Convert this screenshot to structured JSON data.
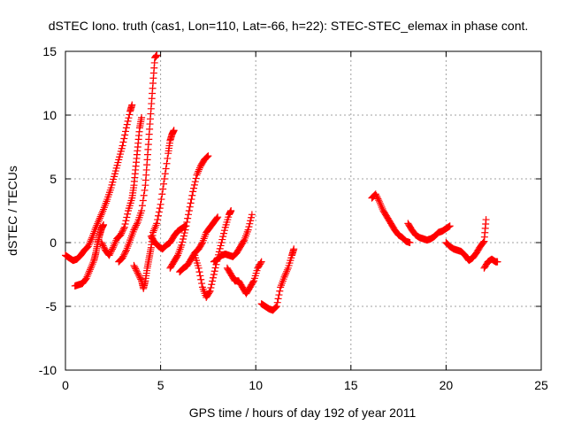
{
  "chart_data": {
    "type": "scatter",
    "title": "dSTEC Iono. truth (cas1, Lon=110, Lat=-66, h=22): STEC-STEC_elemax in phase cont.",
    "xlabel": "GPS time / hours of day 192 of year 2011",
    "ylabel": "dSTEC  / TECUs",
    "xlim": [
      0,
      25
    ],
    "ylim": [
      -10,
      15
    ],
    "xticks": [
      0,
      5,
      10,
      15,
      20,
      25
    ],
    "yticks": [
      -10,
      -5,
      0,
      5,
      10,
      15
    ],
    "grid": true,
    "marker": "+",
    "color": "#ff0000",
    "series": [
      {
        "arcs": [
          [
            [
              0.0,
              -1.0
            ],
            [
              0.2,
              -1.2
            ],
            [
              0.4,
              -1.4
            ],
            [
              0.6,
              -1.3
            ],
            [
              0.8,
              -1.0
            ],
            [
              1.0,
              -0.6
            ],
            [
              1.2,
              -0.3
            ],
            [
              1.4,
              0.4
            ],
            [
              1.6,
              1.2
            ],
            [
              1.8,
              1.9
            ],
            [
              2.0,
              2.6
            ],
            [
              2.2,
              3.4
            ],
            [
              2.4,
              4.3
            ],
            [
              2.6,
              5.4
            ],
            [
              2.8,
              6.5
            ],
            [
              3.0,
              7.6
            ],
            [
              3.2,
              9.0
            ],
            [
              3.4,
              10.3
            ],
            [
              3.5,
              10.8
            ]
          ],
          [
            [
              0.5,
              -3.4
            ],
            [
              0.7,
              -3.3
            ],
            [
              0.9,
              -3.2
            ],
            [
              1.1,
              -2.8
            ],
            [
              1.3,
              -2.1
            ],
            [
              1.5,
              -1.4
            ],
            [
              1.6,
              -0.8
            ],
            [
              1.7,
              0.0
            ],
            [
              1.8,
              0.6
            ],
            [
              1.9,
              1.1
            ],
            [
              2.0,
              1.4
            ]
          ],
          [
            [
              1.9,
              0.0
            ],
            [
              2.1,
              -0.6
            ],
            [
              2.3,
              -1.0
            ],
            [
              2.5,
              -0.4
            ],
            [
              2.7,
              0.3
            ],
            [
              2.9,
              0.6
            ],
            [
              3.1,
              1.2
            ],
            [
              3.3,
              2.5
            ],
            [
              3.5,
              3.5
            ],
            [
              3.6,
              4.5
            ],
            [
              3.7,
              6.0
            ],
            [
              3.8,
              7.5
            ],
            [
              3.9,
              9.0
            ],
            [
              4.0,
              9.8
            ]
          ],
          [
            [
              2.8,
              -1.5
            ],
            [
              3.0,
              -1.2
            ],
            [
              3.2,
              -0.6
            ],
            [
              3.4,
              0.2
            ],
            [
              3.6,
              1.0
            ],
            [
              3.8,
              1.6
            ],
            [
              4.0,
              2.5
            ],
            [
              4.2,
              4.5
            ],
            [
              4.3,
              6.5
            ],
            [
              4.4,
              8.5
            ],
            [
              4.5,
              10.5
            ],
            [
              4.6,
              12.5
            ],
            [
              4.7,
              14.5
            ],
            [
              4.8,
              14.7
            ]
          ],
          [
            [
              3.6,
              -1.8
            ],
            [
              3.8,
              -2.4
            ],
            [
              4.0,
              -3.0
            ],
            [
              4.1,
              -3.6
            ],
            [
              4.2,
              -3.0
            ],
            [
              4.3,
              -2.0
            ],
            [
              4.4,
              -1.2
            ],
            [
              4.5,
              -0.4
            ],
            [
              4.6,
              0.8
            ],
            [
              4.8,
              1.5
            ],
            [
              5.0,
              3.0
            ],
            [
              5.2,
              5.0
            ],
            [
              5.4,
              7.0
            ],
            [
              5.5,
              8.0
            ],
            [
              5.6,
              8.5
            ],
            [
              5.7,
              8.8
            ]
          ],
          [
            [
              4.5,
              0.5
            ],
            [
              4.7,
              0.0
            ],
            [
              4.9,
              -0.3
            ],
            [
              5.1,
              -0.5
            ],
            [
              5.3,
              -0.2
            ],
            [
              5.5,
              0.0
            ],
            [
              5.7,
              0.5
            ],
            [
              5.9,
              0.9
            ],
            [
              6.1,
              1.1
            ],
            [
              6.3,
              1.3
            ]
          ],
          [
            [
              5.5,
              -2.0
            ],
            [
              5.7,
              -1.5
            ],
            [
              5.9,
              -1.0
            ],
            [
              6.1,
              -0.2
            ],
            [
              6.3,
              1.0
            ],
            [
              6.5,
              2.5
            ],
            [
              6.7,
              4.0
            ],
            [
              6.9,
              5.3
            ],
            [
              7.1,
              6.0
            ],
            [
              7.3,
              6.5
            ],
            [
              7.5,
              6.8
            ]
          ],
          [
            [
              6.0,
              -2.3
            ],
            [
              6.2,
              -2.0
            ],
            [
              6.4,
              -1.8
            ],
            [
              6.6,
              -1.3
            ],
            [
              6.8,
              -0.8
            ],
            [
              7.0,
              -0.5
            ],
            [
              7.2,
              0.0
            ],
            [
              7.4,
              0.8
            ],
            [
              7.6,
              1.2
            ],
            [
              7.8,
              1.6
            ],
            [
              8.0,
              2.0
            ]
          ],
          [
            [
              6.8,
              -1.0
            ],
            [
              7.0,
              -2.0
            ],
            [
              7.2,
              -3.5
            ],
            [
              7.4,
              -4.3
            ],
            [
              7.6,
              -3.8
            ],
            [
              7.8,
              -2.5
            ],
            [
              8.0,
              -1.2
            ],
            [
              8.2,
              0.0
            ],
            [
              8.4,
              1.2
            ],
            [
              8.6,
              2.2
            ],
            [
              8.7,
              2.5
            ]
          ],
          [
            [
              7.8,
              -1.5
            ],
            [
              8.0,
              -1.3
            ],
            [
              8.2,
              -1.0
            ],
            [
              8.4,
              -0.9
            ],
            [
              8.6,
              -1.0
            ],
            [
              8.8,
              -1.1
            ],
            [
              9.0,
              -0.8
            ],
            [
              9.2,
              -0.3
            ],
            [
              9.4,
              0.2
            ],
            [
              9.6,
              1.0
            ],
            [
              9.8,
              2.2
            ]
          ],
          [
            [
              8.5,
              -2.0
            ],
            [
              8.7,
              -2.5
            ],
            [
              8.9,
              -3.0
            ],
            [
              9.1,
              -3.0
            ],
            [
              9.3,
              -3.5
            ],
            [
              9.5,
              -4.0
            ],
            [
              9.7,
              -3.5
            ],
            [
              9.9,
              -3.0
            ],
            [
              10.1,
              -2.0
            ],
            [
              10.3,
              -1.5
            ]
          ],
          [
            [
              10.3,
              -4.8
            ],
            [
              10.5,
              -5.0
            ],
            [
              10.7,
              -5.2
            ],
            [
              10.9,
              -5.3
            ],
            [
              11.1,
              -5.0
            ],
            [
              11.3,
              -3.5
            ],
            [
              11.5,
              -2.7
            ],
            [
              11.7,
              -2.0
            ],
            [
              11.9,
              -1.0
            ],
            [
              12.0,
              -0.5
            ]
          ],
          [
            [
              16.1,
              3.5
            ],
            [
              16.3,
              3.8
            ],
            [
              16.5,
              3.2
            ],
            [
              16.7,
              2.5
            ],
            [
              16.9,
              2.0
            ],
            [
              17.1,
              1.5
            ],
            [
              17.3,
              1.0
            ],
            [
              17.5,
              0.6
            ],
            [
              17.7,
              0.4
            ],
            [
              17.9,
              0.1
            ],
            [
              18.1,
              0.0
            ]
          ],
          [
            [
              18.0,
              1.5
            ],
            [
              18.2,
              1.0
            ],
            [
              18.4,
              0.6
            ],
            [
              18.6,
              0.4
            ],
            [
              18.8,
              0.3
            ],
            [
              19.0,
              0.2
            ],
            [
              19.2,
              0.3
            ],
            [
              19.4,
              0.5
            ],
            [
              19.6,
              0.8
            ],
            [
              19.8,
              0.9
            ],
            [
              20.0,
              1.1
            ],
            [
              20.2,
              1.3
            ]
          ],
          [
            [
              20.0,
              0.0
            ],
            [
              20.2,
              -0.3
            ],
            [
              20.4,
              -0.5
            ],
            [
              20.6,
              -0.6
            ],
            [
              20.8,
              -0.7
            ],
            [
              21.0,
              -1.0
            ],
            [
              21.2,
              -1.4
            ],
            [
              21.4,
              -1.2
            ],
            [
              21.6,
              -0.8
            ],
            [
              21.8,
              -0.3
            ],
            [
              22.0,
              0.1
            ],
            [
              22.1,
              1.8
            ]
          ],
          [
            [
              22.0,
              -2.0
            ],
            [
              22.2,
              -1.5
            ],
            [
              22.4,
              -1.3
            ],
            [
              22.6,
              -1.5
            ],
            [
              22.7,
              -1.5
            ]
          ]
        ]
      }
    ]
  }
}
